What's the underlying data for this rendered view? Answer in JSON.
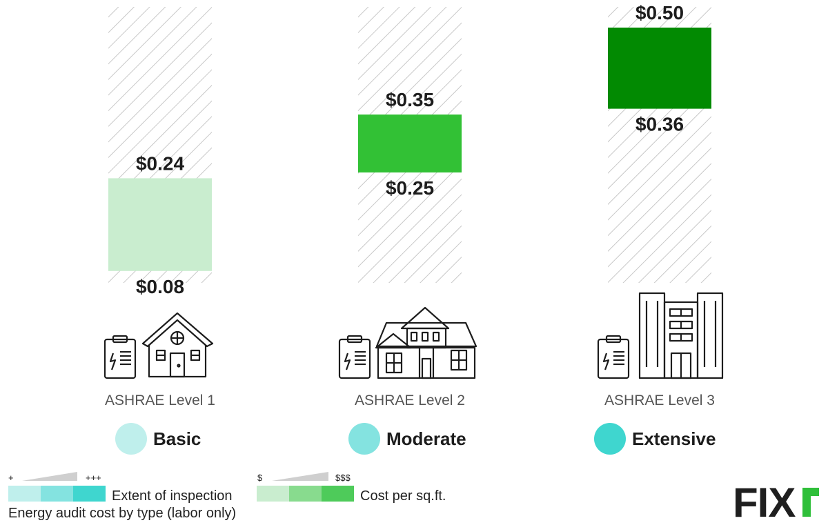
{
  "title": "Energy audit cost by type (labor only)",
  "brand": {
    "text": "FIXR",
    "accent_color": "#2fbf3a"
  },
  "chart_data": {
    "type": "bar",
    "subtype": "floating-range",
    "title": "Energy audit cost by type (labor only)",
    "ylim": [
      0,
      0.53
    ],
    "categories": [
      {
        "level": "ASHRAE Level 1",
        "extent": "Basic",
        "low": 0.08,
        "high": 0.24,
        "low_label": "$0.08",
        "high_label": "$0.24",
        "bar_color": "#c9edcf",
        "extent_color": "#bfefec",
        "icon": "small-house-icon"
      },
      {
        "level": "ASHRAE Level 2",
        "extent": "Moderate",
        "low": 0.25,
        "high": 0.35,
        "low_label": "$0.25",
        "high_label": "$0.35",
        "bar_color": "#32c135",
        "extent_color": "#84e3e0",
        "icon": "large-house-icon"
      },
      {
        "level": "ASHRAE Level 3",
        "extent": "Extensive",
        "low": 0.36,
        "high": 0.5,
        "low_label": "$0.36",
        "high_label": "$0.50",
        "bar_color": "#028a02",
        "extent_color": "#3fd6cf",
        "icon": "building-icon"
      }
    ],
    "legend": [
      {
        "label": "Extent of inspection",
        "low": "+",
        "high": "+++",
        "colors": [
          "#bfefec",
          "#84e3e0",
          "#3fd6cf"
        ]
      },
      {
        "label": "Cost per sq.ft.",
        "low": "$",
        "high": "$$$",
        "colors": [
          "#c9edcf",
          "#88db8e",
          "#4ecb5a"
        ]
      }
    ],
    "grid": false,
    "background_pattern": "diagonal-hatch"
  }
}
